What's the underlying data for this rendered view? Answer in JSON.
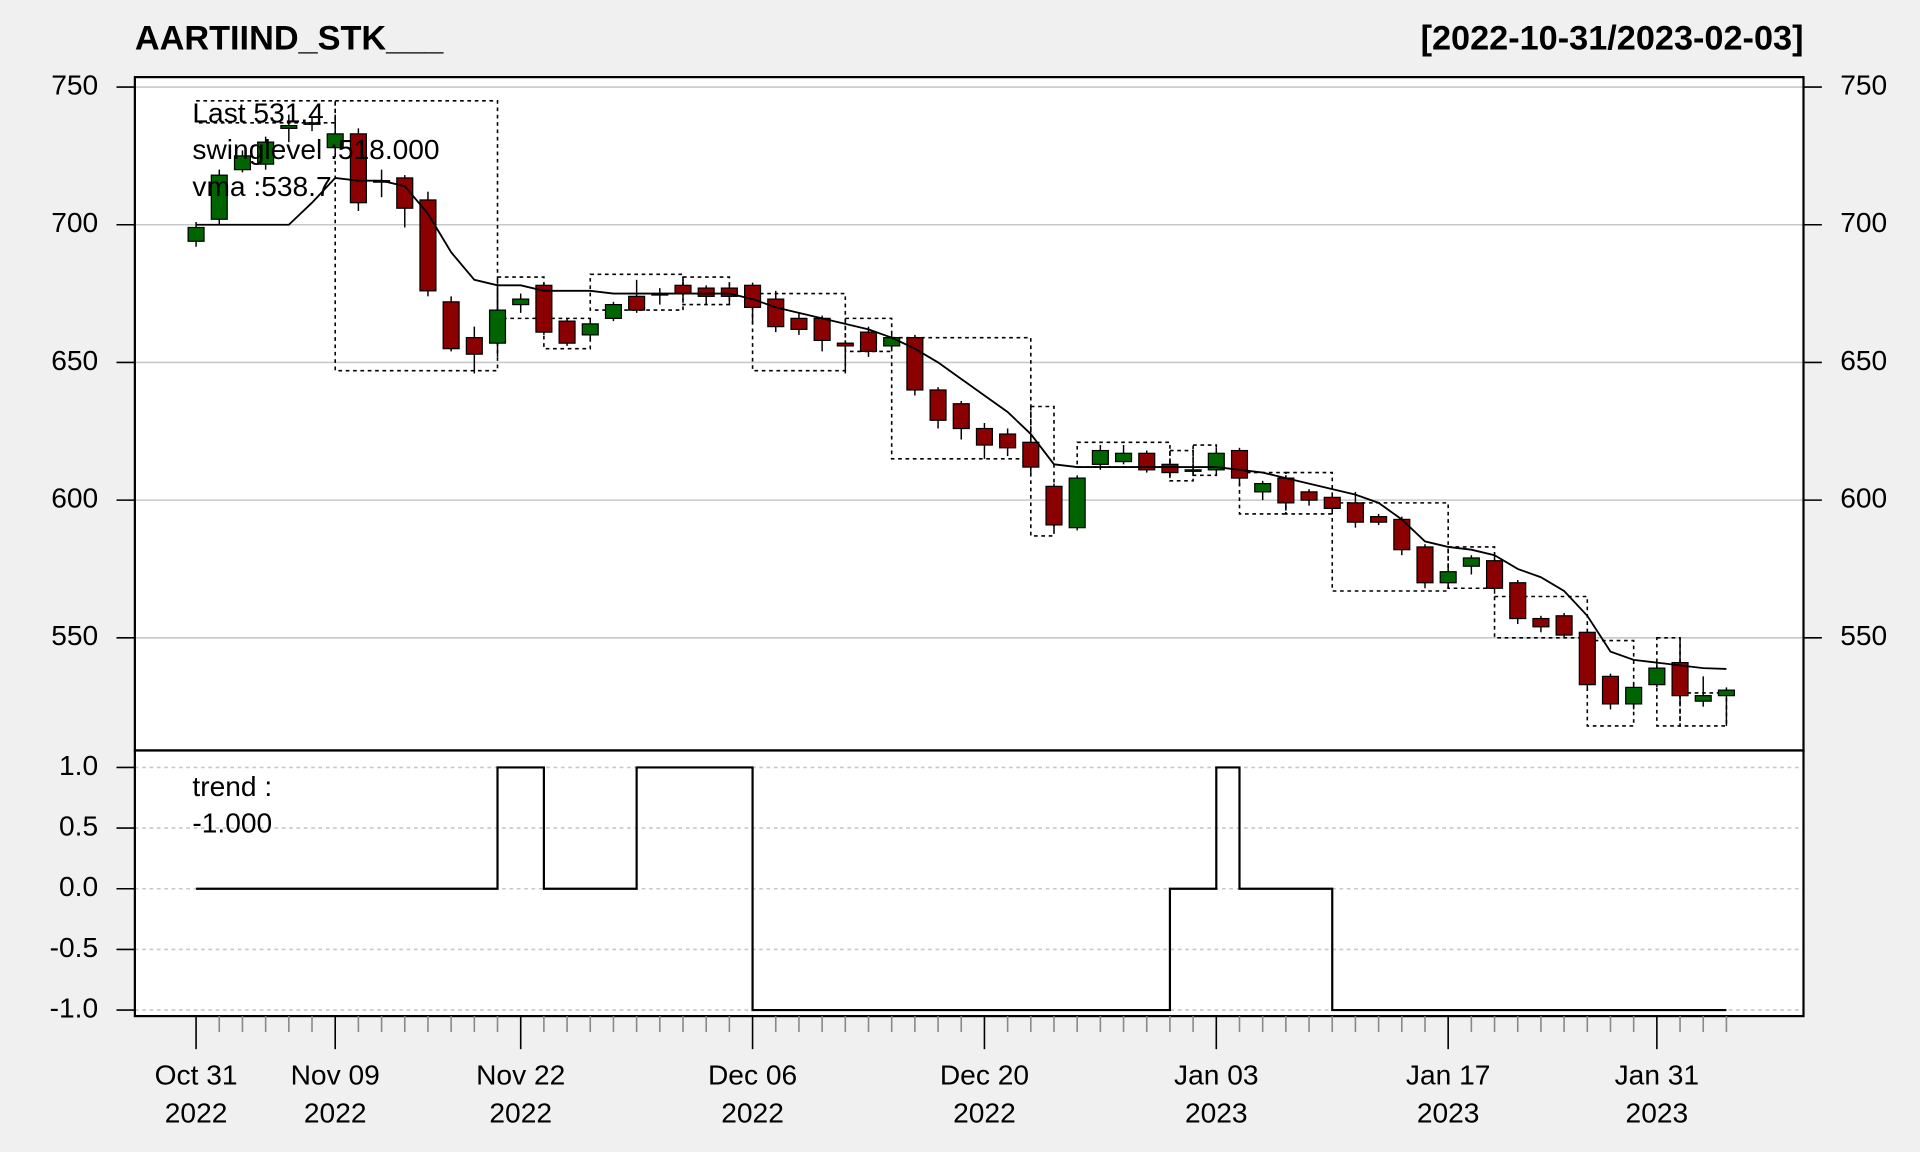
{
  "chart_data": [
    {
      "type": "candlestick",
      "title": "AARTIIND_STK___",
      "subtitle": "[2022-10-31/2023-02-03]",
      "categories": [
        "Oct 31\n2022",
        null,
        null,
        null,
        null,
        null,
        "Nov 09\n2022",
        null,
        null,
        null,
        null,
        null,
        null,
        null,
        "Nov 22\n2022",
        null,
        null,
        null,
        null,
        null,
        null,
        null,
        null,
        null,
        "Dec 06\n2022",
        null,
        null,
        null,
        null,
        null,
        null,
        null,
        null,
        null,
        "Dec 20\n2022",
        null,
        null,
        null,
        null,
        null,
        null,
        null,
        null,
        null,
        "Jan 03\n2023",
        null,
        null,
        null,
        null,
        null,
        null,
        null,
        null,
        null,
        "Jan 17\n2023",
        null,
        null,
        null,
        null,
        null,
        null,
        null,
        null,
        "Jan 31\n2023",
        null,
        null,
        null
      ],
      "open": [
        694,
        702,
        720,
        722,
        735,
        737,
        728,
        733,
        716,
        717,
        709,
        672,
        659,
        657,
        671,
        678,
        665,
        660,
        666,
        674,
        675,
        678,
        677,
        677,
        678,
        673,
        666,
        666,
        657,
        661,
        656,
        659,
        640,
        635,
        626,
        624,
        621,
        605,
        590,
        613,
        614,
        617,
        613,
        611,
        611,
        618,
        603,
        608,
        603,
        601,
        599,
        594,
        593,
        583,
        570,
        576,
        578,
        570,
        557,
        558,
        552,
        536,
        526,
        533,
        541,
        527,
        529
      ],
      "high": [
        701,
        720,
        727,
        732,
        740,
        739,
        740,
        735,
        720,
        718,
        712,
        674,
        663,
        677,
        675,
        679,
        666,
        666,
        672,
        680,
        677,
        680,
        678,
        679,
        679,
        676,
        668,
        667,
        658,
        663,
        661,
        660,
        641,
        636,
        628,
        626,
        622,
        606,
        609,
        620,
        620,
        618,
        614,
        613,
        619,
        619,
        607,
        609,
        604,
        602,
        603,
        595,
        594,
        584,
        576,
        580,
        580,
        571,
        558,
        559,
        553,
        537,
        534,
        541,
        550,
        536,
        532
      ],
      "low": [
        692,
        700,
        719,
        720,
        730,
        734,
        725,
        705,
        710,
        699,
        674,
        654,
        646,
        652,
        668,
        660,
        656,
        658,
        665,
        668,
        671,
        674,
        671,
        671,
        664,
        661,
        660,
        654,
        646,
        652,
        655,
        638,
        626,
        622,
        615,
        616,
        609,
        589,
        589,
        611,
        613,
        610,
        608,
        609,
        609,
        605,
        600,
        597,
        598,
        596,
        590,
        591,
        580,
        568,
        568,
        573,
        566,
        555,
        552,
        550,
        531,
        524,
        524,
        532,
        526,
        525,
        518
      ],
      "close": [
        699,
        718,
        725,
        730,
        736,
        737,
        733,
        708,
        716,
        706,
        676,
        655,
        653,
        669,
        673,
        661,
        657,
        664,
        671,
        669,
        675,
        675,
        674,
        674,
        670,
        663,
        662,
        658,
        656,
        654,
        659,
        640,
        629,
        626,
        620,
        619,
        612,
        591,
        608,
        618,
        617,
        611,
        610,
        611,
        617,
        608,
        606,
        599,
        600,
        597,
        592,
        592,
        582,
        570,
        574,
        579,
        568,
        557,
        554,
        551,
        533,
        526,
        532,
        539,
        529,
        529,
        531
      ],
      "up_color": "#006400",
      "down_color": "#8b0000",
      "series": [
        {
          "name": "vma",
          "color": "#000000",
          "values": [
            700,
            700,
            700,
            700,
            700,
            708,
            717,
            716,
            716,
            714,
            704,
            690,
            680,
            678,
            678,
            676,
            676,
            676,
            675,
            675,
            675,
            675,
            675,
            675,
            673,
            670,
            668,
            666,
            664,
            662,
            659,
            655,
            650,
            644,
            638,
            632,
            624,
            613,
            612,
            612,
            612,
            612,
            612,
            612,
            612,
            611,
            610,
            608,
            606,
            604,
            602,
            599,
            593,
            585,
            583,
            582,
            580,
            575,
            572,
            567,
            558,
            545,
            542,
            541,
            540,
            539,
            538.7
          ]
        }
      ],
      "swing_boxes": [
        {
          "x": [
            0,
            6
          ],
          "y": [
            737,
            745
          ]
        },
        {
          "x": [
            6,
            13
          ],
          "y": [
            647,
            745
          ]
        },
        {
          "x": [
            13,
            15
          ],
          "y": [
            666,
            681
          ]
        },
        {
          "x": [
            15,
            17
          ],
          "y": [
            655,
            666
          ]
        },
        {
          "x": [
            17,
            21
          ],
          "y": [
            669,
            682
          ]
        },
        {
          "x": [
            21,
            23
          ],
          "y": [
            671,
            681
          ]
        },
        {
          "x": [
            24,
            28
          ],
          "y": [
            647,
            675
          ]
        },
        {
          "x": [
            28,
            30
          ],
          "y": [
            654,
            666
          ]
        },
        {
          "x": [
            30,
            36
          ],
          "y": [
            615,
            659
          ]
        },
        {
          "x": [
            36,
            37
          ],
          "y": [
            587,
            634
          ]
        },
        {
          "x": [
            38,
            42
          ],
          "y": [
            612,
            621
          ]
        },
        {
          "x": [
            42,
            43
          ],
          "y": [
            607,
            618
          ]
        },
        {
          "x": [
            43,
            44
          ],
          "y": [
            609,
            620
          ]
        },
        {
          "x": [
            45,
            47
          ],
          "y": [
            595,
            610
          ]
        },
        {
          "x": [
            47,
            49
          ],
          "y": [
            595,
            610
          ]
        },
        {
          "x": [
            49,
            54
          ],
          "y": [
            567,
            599
          ]
        },
        {
          "x": [
            54,
            56
          ],
          "y": [
            568,
            583
          ]
        },
        {
          "x": [
            56,
            60
          ],
          "y": [
            550,
            565
          ]
        },
        {
          "x": [
            60,
            62
          ],
          "y": [
            518,
            549
          ]
        },
        {
          "x": [
            63,
            64
          ],
          "y": [
            518,
            550
          ]
        },
        {
          "x": [
            64,
            66
          ],
          "y": [
            518,
            530
          ]
        }
      ],
      "legend": [
        {
          "text": "Last 531.4",
          "color": "#006400"
        },
        {
          "text": "swinglevel :518.000",
          "color": "#000000"
        },
        {
          "text": "vma :538.7",
          "color": "#000000"
        }
      ],
      "ylim": [
        509.1,
        753.6
      ],
      "yticks": [
        550,
        600,
        650,
        700,
        750
      ],
      "grid": true,
      "right_axis": true
    },
    {
      "type": "step",
      "series": [
        {
          "name": "trend",
          "color": "#000000",
          "values": [
            0,
            0,
            0,
            0,
            0,
            0,
            0,
            0,
            0,
            0,
            0,
            0,
            0,
            1,
            1,
            0,
            0,
            0,
            0,
            1,
            1,
            1,
            1,
            1,
            -1,
            -1,
            -1,
            -1,
            -1,
            -1,
            -1,
            -1,
            -1,
            -1,
            -1,
            -1,
            -1,
            -1,
            -1,
            -1,
            -1,
            -1,
            0,
            0,
            1,
            0,
            0,
            0,
            0,
            -1,
            -1,
            -1,
            -1,
            -1,
            -1,
            -1,
            -1,
            -1,
            -1,
            -1,
            -1,
            -1,
            -1,
            -1,
            -1,
            -1,
            -1
          ]
        }
      ],
      "legend": [
        {
          "text": "trend :",
          "color": "#000000"
        },
        {
          "text": "-1.000",
          "color": "#000000"
        }
      ],
      "ylim": [
        -1.05,
        1.14
      ],
      "yticks": [
        {
          "value": 1,
          "label": "1.0"
        },
        {
          "value": 0.5,
          "label": "0.5"
        },
        {
          "value": 0,
          "label": "0.0"
        },
        {
          "value": -0.5,
          "label": "-0.5"
        },
        {
          "value": -1,
          "label": "-1.0"
        }
      ],
      "grid": true
    }
  ]
}
